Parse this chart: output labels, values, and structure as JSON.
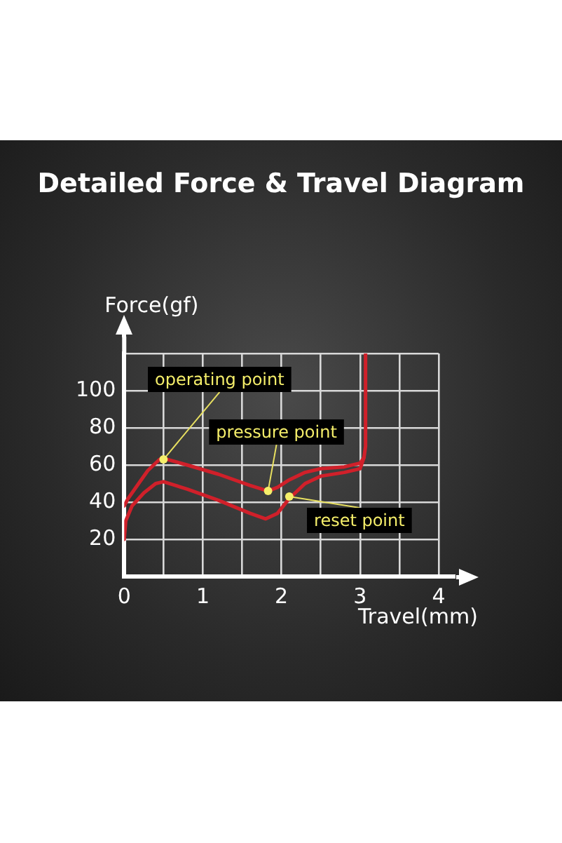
{
  "chart_data": {
    "type": "line",
    "title": "Detailed Force & Travel Diagram",
    "xlabel": "Travel(mm)",
    "ylabel": "Force(gf)",
    "series": [
      {
        "color": "#d0202a",
        "x": [
          0,
          0.05,
          0.15,
          0.3,
          0.45,
          0.55,
          0.8,
          1.2,
          1.6,
          1.83,
          1.95,
          2.1,
          2.3,
          2.5,
          2.8,
          3.0,
          3.05,
          3.07,
          3.07
        ],
        "values": [
          38,
          42,
          48,
          57,
          63,
          63,
          60,
          55,
          49,
          46,
          48,
          52,
          56,
          58,
          59,
          61,
          64,
          70,
          120
        ]
      },
      {
        "color": "#d0202a",
        "x": [
          0,
          0.02,
          0.1,
          0.25,
          0.4,
          0.5,
          0.8,
          1.2,
          1.6,
          1.8,
          1.95,
          2.1,
          2.3,
          2.5,
          2.8,
          3.0,
          3.05
        ],
        "values": [
          20,
          30,
          38,
          45,
          50,
          51,
          47,
          41,
          34,
          31,
          34,
          42,
          50,
          54,
          56,
          58,
          64
        ]
      }
    ],
    "xlim": [
      0,
      4
    ],
    "ylim": [
      0,
      120
    ],
    "xticks": [
      0,
      {
        "value": 0.5,
        "label": null
      },
      1,
      {
        "value": 1.5,
        "label": null
      },
      2,
      {
        "value": 2.5,
        "label": null
      },
      3,
      {
        "value": 3.5,
        "label": null
      },
      4
    ],
    "yticks": [
      {
        "value": 0,
        "label": null
      },
      20,
      40,
      60,
      80,
      100,
      {
        "value": 120,
        "label": null
      }
    ],
    "grid": true,
    "legend": false,
    "marker": "none",
    "line_style": "solid",
    "annotations": [
      {
        "text": "operating point",
        "x": 0.5,
        "y": 63
      },
      {
        "text": "pressure point",
        "x": 1.83,
        "y": 46
      },
      {
        "text": "reset point",
        "x": 2.1,
        "y": 43
      }
    ]
  }
}
